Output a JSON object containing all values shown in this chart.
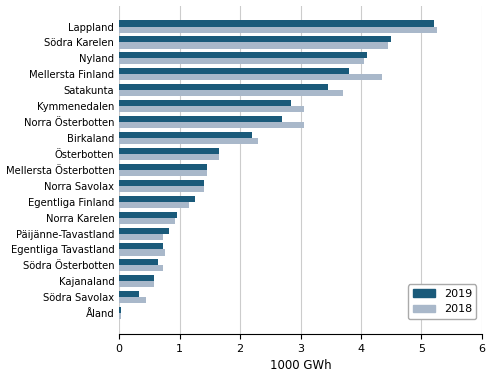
{
  "categories": [
    "Lappland",
    "Södra Karelen",
    "Nyland",
    "Mellersta Finland",
    "Satakunta",
    "Kymmenedalen",
    "Norra Österbotten",
    "Birkaland",
    "Österbotten",
    "Mellersta Österbotten",
    "Norra Savolax",
    "Egentliga Finland",
    "Norra Karelen",
    "Päijänne-Tavastland",
    "Egentliga Tavastland",
    "Södra Österbotten",
    "Kajanaland",
    "Södra Savolax",
    "Åland"
  ],
  "values_2019": [
    5.2,
    4.5,
    4.1,
    3.8,
    3.45,
    2.85,
    2.7,
    2.2,
    1.65,
    1.45,
    1.4,
    1.25,
    0.95,
    0.82,
    0.72,
    0.65,
    0.57,
    0.33,
    0.03
  ],
  "values_2018": [
    5.25,
    4.45,
    4.05,
    4.35,
    3.7,
    3.05,
    3.05,
    2.3,
    1.65,
    1.45,
    1.4,
    1.15,
    0.92,
    0.72,
    0.75,
    0.72,
    0.57,
    0.45,
    0.03
  ],
  "color_2019": "#1a5a7a",
  "color_2018": "#a9b8ca",
  "xlabel": "1000 GWh",
  "xlim": [
    0,
    6
  ],
  "xticks": [
    0,
    1,
    2,
    3,
    4,
    5,
    6
  ],
  "bar_height": 0.38,
  "grid_color": "#cccccc"
}
